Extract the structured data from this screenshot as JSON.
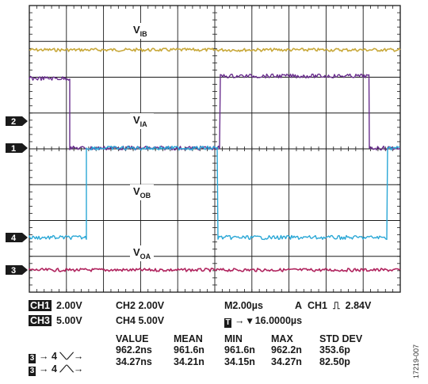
{
  "chart_data": {
    "type": "line",
    "x_divisions": 10,
    "y_divisions": 8,
    "labels": {
      "vib": {
        "main": "V",
        "sub": "IB"
      },
      "via": {
        "main": "V",
        "sub": "IA"
      },
      "vob": {
        "main": "V",
        "sub": "OB"
      },
      "voa": {
        "main": "V",
        "sub": "OA"
      }
    },
    "channel_markers": [
      "2",
      "1",
      "4",
      "3"
    ],
    "series": [
      {
        "channel": "CH1",
        "color": "#6a2f8e"
      },
      {
        "channel": "CH2",
        "color": "#c8a83a"
      },
      {
        "channel": "CH3",
        "color": "#b0245e"
      },
      {
        "channel": "CH4",
        "color": "#2aa7d6"
      }
    ]
  },
  "settings": {
    "ch1": {
      "label": "CH1",
      "value": "2.00V"
    },
    "ch2": "CH2 2.00V",
    "timebase": "M2.00µs",
    "trigger": {
      "mode": "A",
      "channel": "CH1",
      "symbol": "⎍",
      "level": "2.84V"
    },
    "ch3": {
      "label": "CH3",
      "value": "5.00V"
    },
    "ch4": "CH4 5.00V",
    "position": {
      "marker": "T",
      "text": "→ ▾ 16.0000µs"
    }
  },
  "measurements": {
    "headers": [
      "VALUE",
      "MEAN",
      "MIN",
      "MAX",
      "STD DEV"
    ],
    "rows": [
      {
        "src": "3",
        "arrow": "→ 4",
        "edge": "⟍⟋→",
        "values": [
          "962.2ns",
          "961.6n",
          "961.6n",
          "962.2n",
          "353.6p"
        ]
      },
      {
        "src": "3",
        "arrow": "→ 4",
        "edge": "⟋⟍→",
        "values": [
          "34.27ns",
          "34.21n",
          "34.15n",
          "34.27n",
          "82.50p"
        ]
      }
    ]
  },
  "figure_id": "17219-007"
}
